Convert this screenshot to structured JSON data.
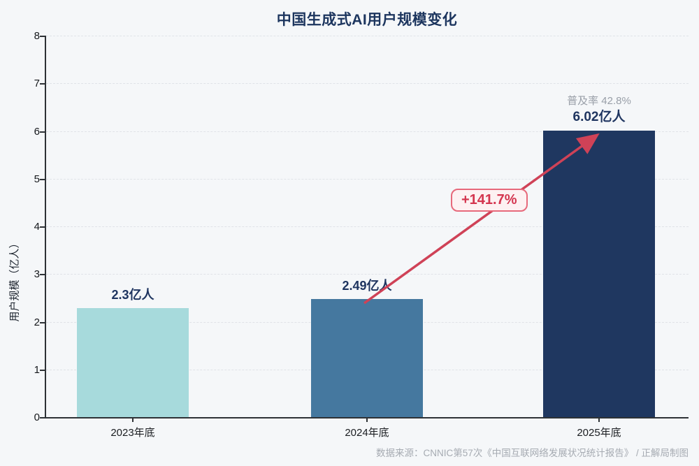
{
  "chart_data": {
    "type": "bar",
    "title": "中国生成式AI用户规模变化",
    "categories": [
      "2023年底",
      "2024年底",
      "2025年底"
    ],
    "values": [
      2.3,
      2.49,
      6.02
    ],
    "bar_value_labels": [
      "2.3亿人",
      "2.49亿人",
      "6.02亿人"
    ],
    "bar_colors": [
      "#a7dadc",
      "#45789f",
      "#1f3760"
    ],
    "xlabel": "",
    "ylabel": "用户规模（亿人）",
    "ylim": [
      0,
      8
    ],
    "y_ticks": [
      "0",
      "1",
      "2",
      "3",
      "4",
      "5",
      "6",
      "7",
      "8"
    ],
    "grid": "horizontal dashed",
    "legend": "none",
    "annotations": {
      "growth_label": "+141.7%",
      "penetration_label": "普及率 42.8%",
      "arrow": {
        "from": "2024年底 bar top",
        "to": "2025年底 bar top",
        "color": "#cf4257"
      }
    }
  },
  "footer": {
    "source": "数据来源：CNNIC第57次《中国互联网络发展状况统计报告》 / 正解局制图"
  },
  "colors": {
    "background": "#f5f7f9",
    "title_text": "#1c355e",
    "value_label_text": "#1f3560",
    "penetration_text": "#999fa8",
    "arrow_red": "#cf4257",
    "badge_text": "#d4354f",
    "badge_border": "#e7697b",
    "badge_bg": "#fdf1f2",
    "axis_line": "#2e3236",
    "gridline": "#e0e3e8",
    "source_text": "#a6abb2"
  }
}
